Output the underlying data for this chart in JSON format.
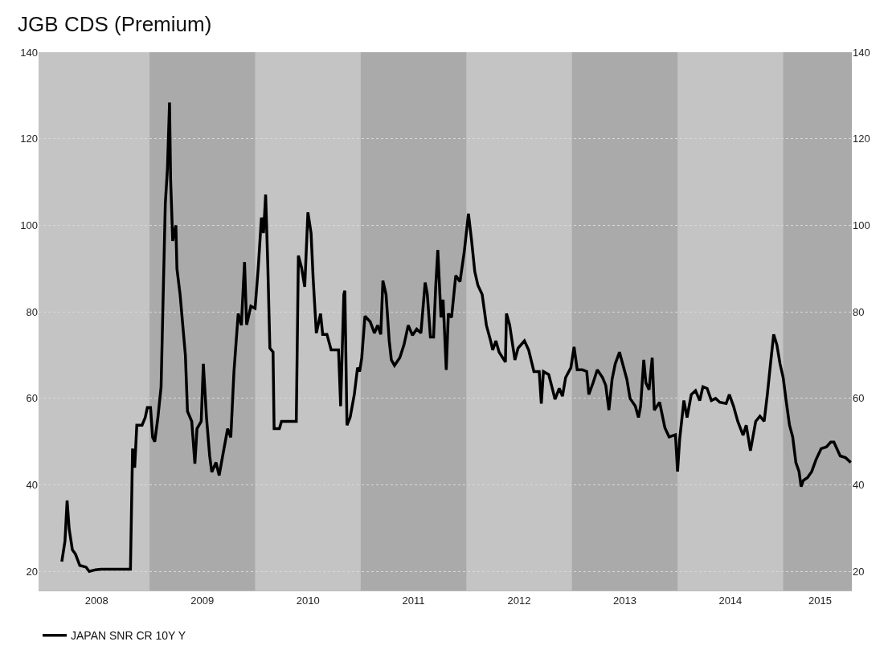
{
  "chart_data": {
    "type": "line",
    "title": "JGB CDS (Premium)",
    "x": [
      2008.17,
      2008.2,
      2008.22,
      2008.24,
      2008.27,
      2008.3,
      2008.34,
      2008.4,
      2008.43,
      2008.49,
      2008.54,
      2008.82,
      2008.84,
      2008.86,
      2008.88,
      2008.93,
      2008.96,
      2008.98,
      2009.01,
      2009.03,
      2009.05,
      2009.08,
      2009.11,
      2009.13,
      2009.15,
      2009.17,
      2009.19,
      2009.2,
      2009.22,
      2009.25,
      2009.26,
      2009.29,
      2009.34,
      2009.36,
      2009.4,
      2009.43,
      2009.45,
      2009.49,
      2009.51,
      2009.54,
      2009.57,
      2009.59,
      2009.63,
      2009.66,
      2009.69,
      2009.74,
      2009.77,
      2009.8,
      2009.84,
      2009.87,
      2009.9,
      2009.92,
      2009.96,
      2010.0,
      2010.03,
      2010.06,
      2010.08,
      2010.1,
      2010.12,
      2010.14,
      2010.17,
      2010.18,
      2010.23,
      2010.25,
      2010.39,
      2010.41,
      2010.44,
      2010.47,
      2010.5,
      2010.53,
      2010.55,
      2010.58,
      2010.62,
      2010.64,
      2010.68,
      2010.72,
      2010.79,
      2010.81,
      2010.84,
      2010.85,
      2010.87,
      2010.9,
      2010.94,
      2010.97,
      2010.99,
      2011.01,
      2011.04,
      2011.09,
      2011.13,
      2011.16,
      2011.19,
      2011.21,
      2011.24,
      2011.27,
      2011.29,
      2011.32,
      2011.37,
      2011.41,
      2011.45,
      2011.49,
      2011.53,
      2011.57,
      2011.61,
      2011.63,
      2011.66,
      2011.69,
      2011.71,
      2011.73,
      2011.76,
      2011.78,
      2011.81,
      2011.83,
      2011.86,
      2011.9,
      2011.94,
      2011.98,
      2012.02,
      2012.05,
      2012.08,
      2012.11,
      2012.15,
      2012.19,
      2012.23,
      2012.25,
      2012.28,
      2012.31,
      2012.37,
      2012.38,
      2012.41,
      2012.46,
      2012.49,
      2012.55,
      2012.59,
      2012.64,
      2012.69,
      2012.71,
      2012.73,
      2012.78,
      2012.81,
      2012.84,
      2012.88,
      2012.91,
      2012.94,
      2012.99,
      2013.02,
      2013.05,
      2013.1,
      2013.14,
      2013.16,
      2013.2,
      2013.24,
      2013.29,
      2013.32,
      2013.35,
      2013.38,
      2013.41,
      2013.45,
      2013.48,
      2013.52,
      2013.55,
      2013.6,
      2013.63,
      2013.65,
      2013.68,
      2013.7,
      2013.73,
      2013.76,
      2013.78,
      2013.83,
      2013.88,
      2013.92,
      2013.98,
      2014.0,
      2014.02,
      2014.06,
      2014.09,
      2014.13,
      2014.17,
      2014.21,
      2014.24,
      2014.28,
      2014.32,
      2014.36,
      2014.4,
      2014.46,
      2014.49,
      2014.53,
      2014.57,
      2014.62,
      2014.65,
      2014.69,
      2014.74,
      2014.78,
      2014.82,
      2014.85,
      2014.88,
      2014.91,
      2014.94,
      2014.97,
      2015.0,
      2015.03,
      2015.06,
      2015.09,
      2015.12,
      2015.15,
      2015.17,
      2015.19,
      2015.23,
      2015.27,
      2015.31,
      2015.36,
      2015.41,
      2015.45,
      2015.48,
      2015.54,
      2015.59,
      2015.64
    ],
    "series": [
      {
        "name": "JAPAN SNR CR 10Y Y",
        "color": "#000000",
        "values": [
          22.3,
          27,
          36.4,
          29.8,
          25,
          24,
          21.4,
          21,
          20,
          20.4,
          20.5,
          20.5,
          48.4,
          44,
          53.8,
          53.8,
          55.6,
          57.9,
          57.9,
          51,
          50,
          55.6,
          62.7,
          84,
          105,
          113,
          128.4,
          110.7,
          96.4,
          100,
          90,
          84,
          70,
          57,
          54.7,
          44.9,
          53,
          54.7,
          68,
          55.6,
          46.7,
          43,
          45.2,
          42.2,
          46.3,
          53,
          51,
          66.2,
          79.6,
          76.9,
          91.5,
          77,
          81.3,
          80.8,
          90.2,
          101.8,
          98.2,
          107.1,
          91.1,
          71.6,
          70.7,
          53,
          53,
          54.7,
          54.7,
          93,
          90.2,
          85.8,
          103,
          98.2,
          87.6,
          75.1,
          79.6,
          74.8,
          74.8,
          71.2,
          71.2,
          58.2,
          84,
          84.9,
          53.8,
          55.6,
          61,
          67.1,
          66.2,
          69.4,
          79,
          77.7,
          75.1,
          76.9,
          74.8,
          87.2,
          84,
          73.3,
          68.9,
          67.6,
          69.4,
          72.4,
          76.9,
          74.6,
          76,
          75.1,
          86.8,
          84.2,
          74.2,
          74.2,
          85.8,
          94.3,
          78.7,
          82.8,
          66.6,
          79.6,
          78.7,
          88.4,
          87,
          93.8,
          102.7,
          96.4,
          89.3,
          86.1,
          84,
          76.9,
          73.3,
          71.2,
          73.3,
          70.7,
          68.4,
          79.6,
          77,
          68.9,
          71.6,
          73.3,
          71.2,
          66.2,
          66.2,
          58.8,
          66.2,
          65.5,
          62.7,
          59.8,
          62.3,
          60.5,
          64.8,
          67.1,
          71.9,
          66.6,
          66.6,
          66.2,
          60.9,
          63.6,
          66.6,
          64.8,
          63,
          57.3,
          64.4,
          68,
          70.7,
          68,
          64.4,
          60,
          58.2,
          55.6,
          58.2,
          68.9,
          63.6,
          62,
          69.4,
          57.3,
          59.1,
          53.2,
          51.1,
          51.6,
          43.1,
          50.6,
          59.5,
          55.6,
          60.9,
          61.8,
          59.5,
          62.7,
          62.3,
          59.5,
          60,
          59.1,
          58.8,
          60.9,
          58.2,
          54.7,
          51.5,
          53.8,
          47.9,
          54.7,
          55.9,
          54.7,
          60.9,
          68,
          74.8,
          72.4,
          68,
          64.8,
          59.1,
          53.8,
          51.1,
          45.2,
          43.1,
          39.6,
          41,
          41.7,
          43.1,
          45.8,
          48.4,
          48.8,
          49.9,
          49.9,
          46.7,
          46.3,
          45.2
        ]
      }
    ],
    "xlim": [
      2007.95,
      2015.65
    ],
    "xticks": [
      {
        "value": 2008.5,
        "label": "2008"
      },
      {
        "value": 2009.5,
        "label": "2009"
      },
      {
        "value": 2010.5,
        "label": "2010"
      },
      {
        "value": 2011.5,
        "label": "2011"
      },
      {
        "value": 2012.5,
        "label": "2012"
      },
      {
        "value": 2013.5,
        "label": "2013"
      },
      {
        "value": 2014.5,
        "label": "2014"
      },
      {
        "value": 2015.35,
        "label": "2015"
      }
    ],
    "ylim": [
      15.6,
      140
    ],
    "yticks": [
      20,
      40,
      60,
      80,
      100,
      120,
      140
    ],
    "y2lim": [
      15.6,
      140
    ],
    "y2ticks": [
      20,
      40,
      60,
      80,
      100,
      120,
      140
    ],
    "bands": [
      {
        "axis": "x",
        "from": 2009.0,
        "to": 2010.0,
        "color": "#aaaaaa"
      },
      {
        "axis": "x",
        "from": 2011.0,
        "to": 2012.0,
        "color": "#aaaaaa"
      },
      {
        "axis": "x",
        "from": 2013.0,
        "to": 2014.0,
        "color": "#aaaaaa"
      },
      {
        "axis": "x",
        "from": 2015.0,
        "to": 2015.65,
        "color": "#aaaaaa"
      }
    ],
    "grid": "y",
    "legend": "bottom left",
    "marker": "none",
    "line_style": "solid"
  }
}
